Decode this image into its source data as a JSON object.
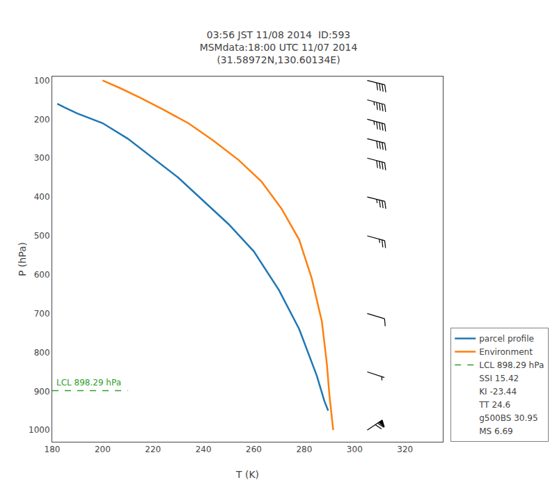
{
  "chart_data": {
    "type": "line",
    "title": "03:56 JST 11/08 2014  ID:593\nMSMdata:18:00 UTC 11/07 2014\n(31.58972N,130.60134E)",
    "xlabel": "T (K)",
    "ylabel": "P (hPa)",
    "xlim": [
      180,
      335
    ],
    "ylim": [
      1030,
      90
    ],
    "xticks": [
      180,
      200,
      220,
      240,
      260,
      280,
      300,
      320
    ],
    "yticks": [
      100,
      200,
      300,
      400,
      500,
      600,
      700,
      800,
      900,
      1000
    ],
    "grid": false,
    "legend": "lower right",
    "series": [
      {
        "name": "parcel profile",
        "color": "#1f77b4",
        "line_style": "solid",
        "x": [
          182,
          185,
          190,
          200,
          210,
          220,
          230,
          240,
          250,
          260,
          270,
          278,
          285,
          288,
          289.5
        ],
        "values": [
          160,
          170,
          185,
          210,
          250,
          300,
          350,
          410,
          470,
          540,
          640,
          740,
          860,
          925,
          950
        ]
      },
      {
        "name": "Environment",
        "color": "#ff7f0e",
        "line_style": "solid",
        "x": [
          200,
          207,
          215,
          224,
          234,
          244,
          254,
          263,
          271,
          278,
          283,
          287,
          289,
          290,
          291.5
        ],
        "values": [
          100,
          120,
          145,
          175,
          210,
          255,
          305,
          360,
          430,
          510,
          610,
          720,
          830,
          910,
          1000
        ]
      },
      {
        "name": "LCL 898.29 hPa",
        "color": "#2ca02c",
        "line_style": "dashed",
        "x": [
          180,
          210
        ],
        "values": [
          898.29,
          898.29
        ]
      }
    ],
    "annotations": [
      {
        "text": "LCL 898.29 hPa",
        "x": 180,
        "y": 898.29,
        "color": "#2ca02c"
      }
    ],
    "stats": [
      "SSI 15.42",
      "KI -23.44",
      "TT 24.6",
      "g500BS 30.95",
      "MS 6.69"
    ],
    "wind_barbs": {
      "x": 305,
      "p": [
        100,
        150,
        200,
        250,
        300,
        400,
        500,
        700,
        850,
        1000
      ],
      "u": [
        -40,
        -45,
        -45,
        -40,
        -38,
        -32,
        -22,
        -10,
        -6,
        -60
      ],
      "v": [
        10,
        12,
        12,
        10,
        10,
        8,
        6,
        3,
        2,
        -40
      ],
      "color": "#000000"
    }
  }
}
